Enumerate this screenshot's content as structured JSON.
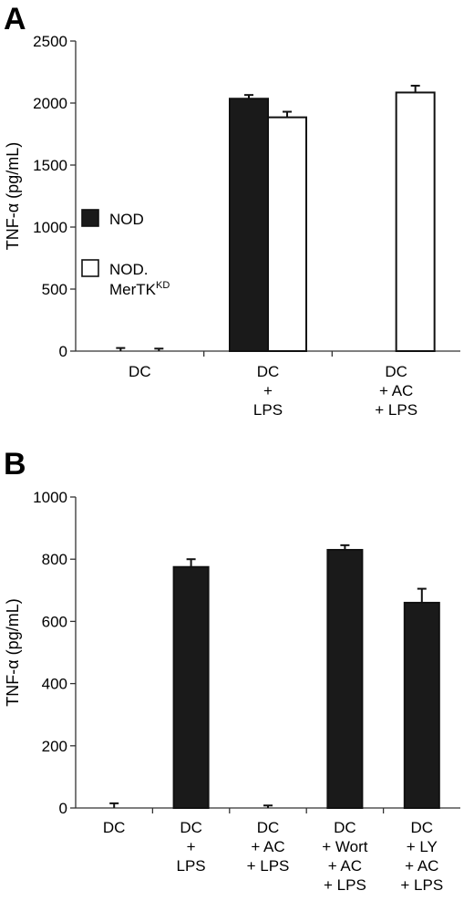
{
  "chart_data": [
    {
      "type": "bar",
      "panel_label": "A",
      "ylabel": "TNF-α (pg/mL)",
      "ylim": [
        0,
        2500
      ],
      "yticks": [
        0,
        500,
        1000,
        1500,
        2000,
        2500
      ],
      "categories": [
        [
          "DC"
        ],
        [
          "DC",
          "+",
          "LPS"
        ],
        [
          "DC",
          "+ AC",
          "+ LPS"
        ]
      ],
      "legend_position": "left",
      "series": [
        {
          "name": "NOD",
          "fill": "#1a1a1a",
          "values": [
            0,
            2035,
            0
          ],
          "errors": [
            25,
            30,
            0
          ]
        },
        {
          "name": "NOD.",
          "name_line2": "MerTK",
          "name_sup": "KD",
          "fill": "#ffffff",
          "values": [
            0,
            1885,
            2085
          ],
          "errors": [
            20,
            45,
            55
          ]
        }
      ]
    },
    {
      "type": "bar",
      "panel_label": "B",
      "ylabel": "TNF-α (pg/mL)",
      "ylim": [
        0,
        1000
      ],
      "yticks": [
        0,
        200,
        400,
        600,
        800,
        1000
      ],
      "categories": [
        [
          "DC"
        ],
        [
          "DC",
          "+",
          "LPS"
        ],
        [
          "DC",
          "+ AC",
          "+ LPS"
        ],
        [
          "DC",
          "+ Wort",
          "+ AC",
          "+ LPS"
        ],
        [
          "DC",
          "+ LY",
          "+ AC",
          "+ LPS"
        ]
      ],
      "series": [
        {
          "fill": "#1a1a1a",
          "values": [
            0,
            775,
            0,
            830,
            660
          ],
          "errors": [
            15,
            25,
            8,
            15,
            45
          ]
        }
      ]
    }
  ]
}
